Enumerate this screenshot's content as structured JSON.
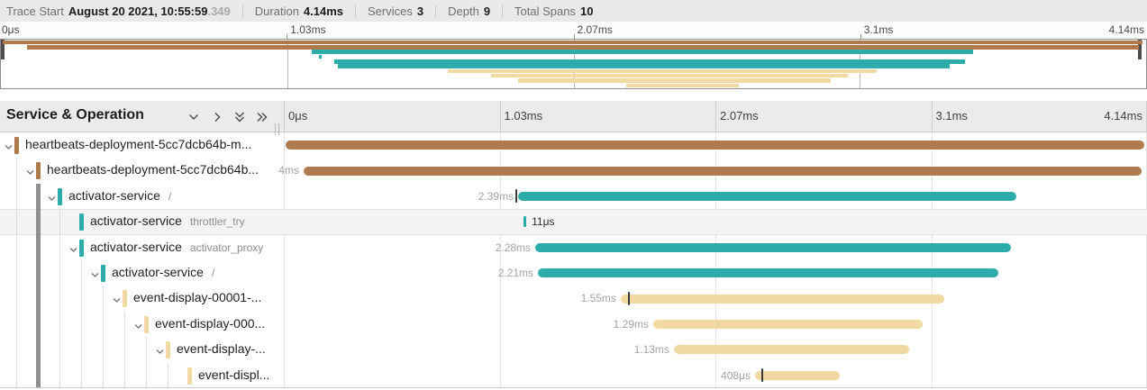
{
  "summary": {
    "trace_start_label": "Trace Start",
    "trace_start_value": "August 20 2021, 10:55:59",
    "trace_start_fraction": ".349",
    "duration_label": "Duration",
    "duration_value": "4.14ms",
    "services_label": "Services",
    "services_value": "3",
    "depth_label": "Depth",
    "depth_value": "9",
    "total_spans_label": "Total Spans",
    "total_spans_value": "10"
  },
  "ruler": {
    "ticks": [
      "0μs",
      "1.03ms",
      "2.07ms",
      "3.1ms",
      "4.14ms"
    ]
  },
  "table": {
    "header_title": "Service & Operation",
    "ticks": [
      "0μs",
      "1.03ms",
      "2.07ms",
      "3.1ms",
      "4.14ms"
    ]
  },
  "colors": {
    "brown": "#ae7a4e",
    "teal": "#2cacab",
    "tan": "#f2d8a2",
    "highlight_row": "#f4f4f4",
    "active_guide": "#8f8f8f"
  },
  "trace": {
    "duration_ms": 4.14,
    "active_guide_row": 1,
    "spans": [
      {
        "service": "heartbeats-deployment-5cc7dcb64b-m...",
        "operation": "",
        "depth": 0,
        "expandable": true,
        "color": "brown",
        "start_ms": 0.008,
        "duration_ms": 4.12,
        "duration_label": "",
        "label_side": "left",
        "highlight": false,
        "log_marks_ms": []
      },
      {
        "service": "heartbeats-deployment-5cc7dcb64b...",
        "operation": "",
        "depth": 1,
        "expandable": true,
        "color": "brown",
        "start_ms": 0.095,
        "duration_ms": 4.02,
        "duration_label": "4ms",
        "label_side": "left",
        "highlight": false,
        "log_marks_ms": []
      },
      {
        "service": "activator-service",
        "operation": "/",
        "depth": 2,
        "expandable": true,
        "color": "teal",
        "start_ms": 1.124,
        "duration_ms": 2.39,
        "duration_label": "2.39ms",
        "label_side": "left",
        "highlight": false,
        "log_marks_ms": [
          1.115
        ]
      },
      {
        "service": "activator-service",
        "operation": "throttler_try",
        "depth": 3,
        "expandable": false,
        "color": "teal",
        "start_ms": 1.15,
        "duration_ms": 0.011,
        "duration_label": "11μs",
        "label_side": "right",
        "highlight": true,
        "log_marks_ms": []
      },
      {
        "service": "activator-service",
        "operation": "activator_proxy",
        "depth": 3,
        "expandable": true,
        "color": "teal",
        "start_ms": 1.206,
        "duration_ms": 2.28,
        "duration_label": "2.28ms",
        "label_side": "left",
        "highlight": false,
        "log_marks_ms": []
      },
      {
        "service": "activator-service",
        "operation": "/",
        "depth": 4,
        "expandable": true,
        "color": "teal",
        "start_ms": 1.219,
        "duration_ms": 2.21,
        "duration_label": "2.21ms",
        "label_side": "left",
        "highlight": false,
        "log_marks_ms": []
      },
      {
        "service": "event-display-00001-...",
        "operation": "",
        "depth": 5,
        "expandable": true,
        "color": "tan",
        "start_ms": 1.616,
        "duration_ms": 1.55,
        "duration_label": "1.55ms",
        "label_side": "left",
        "highlight": false,
        "log_marks_ms": [
          1.655
        ]
      },
      {
        "service": "event-display-000...",
        "operation": "",
        "depth": 6,
        "expandable": true,
        "color": "tan",
        "start_ms": 1.772,
        "duration_ms": 1.29,
        "duration_label": "1.29ms",
        "label_side": "left",
        "highlight": false,
        "log_marks_ms": []
      },
      {
        "service": "event-display-...",
        "operation": "",
        "depth": 7,
        "expandable": true,
        "color": "tan",
        "start_ms": 1.871,
        "duration_ms": 1.13,
        "duration_label": "1.13ms",
        "label_side": "left",
        "highlight": false,
        "log_marks_ms": []
      },
      {
        "service": "event-displ...",
        "operation": "",
        "depth": 8,
        "expandable": false,
        "color": "tan",
        "start_ms": 2.26,
        "duration_ms": 0.408,
        "duration_label": "408μs",
        "label_side": "left",
        "highlight": false,
        "log_marks_ms": [
          2.295
        ]
      }
    ]
  }
}
